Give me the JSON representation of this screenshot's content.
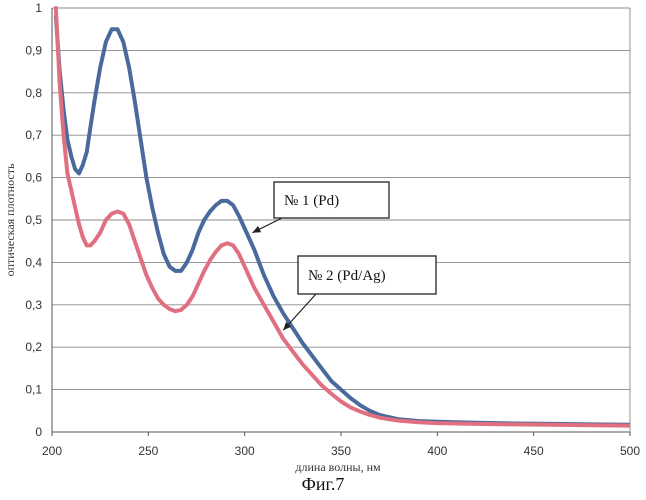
{
  "chart_data": {
    "type": "line",
    "title": "",
    "xlabel": "длина волны, нм",
    "ylabel": "оптическая плотность",
    "xlim": [
      200,
      500
    ],
    "ylim": [
      0,
      1
    ],
    "x_ticks": [
      "200",
      "250",
      "300",
      "350",
      "400",
      "450",
      "500"
    ],
    "y_ticks": [
      "0",
      "0,1",
      "0,2",
      "0,3",
      "0,4",
      "0,5",
      "0,6",
      "0,7",
      "0,8",
      "0,9",
      "1"
    ],
    "grid": true,
    "series": [
      {
        "name": "№ 1 (Pd)",
        "color": "#4a6a9c",
        "x": [
          202,
          204,
          206,
          208,
          210,
          212,
          214,
          216,
          218,
          220,
          222,
          225,
          228,
          231,
          234,
          237,
          240,
          243,
          246,
          249,
          252,
          255,
          258,
          261,
          264,
          267,
          270,
          273,
          276,
          279,
          282,
          285,
          288,
          291,
          294,
          297,
          300,
          305,
          310,
          315,
          320,
          325,
          330,
          335,
          340,
          345,
          350,
          355,
          360,
          365,
          370,
          375,
          380,
          385,
          390,
          400,
          420,
          440,
          460,
          480,
          500
        ],
        "y": [
          0.98,
          0.85,
          0.76,
          0.69,
          0.65,
          0.62,
          0.61,
          0.63,
          0.66,
          0.72,
          0.78,
          0.86,
          0.92,
          0.95,
          0.95,
          0.92,
          0.86,
          0.78,
          0.69,
          0.6,
          0.53,
          0.47,
          0.42,
          0.39,
          0.38,
          0.38,
          0.4,
          0.43,
          0.47,
          0.5,
          0.52,
          0.535,
          0.545,
          0.545,
          0.535,
          0.51,
          0.48,
          0.43,
          0.37,
          0.32,
          0.28,
          0.245,
          0.21,
          0.18,
          0.15,
          0.12,
          0.1,
          0.08,
          0.063,
          0.05,
          0.04,
          0.035,
          0.03,
          0.028,
          0.026,
          0.024,
          0.022,
          0.02,
          0.019,
          0.018,
          0.017
        ]
      },
      {
        "name": "№ 2 (Pd/Ag)",
        "color": "#e07080",
        "x": [
          202,
          204,
          206,
          208,
          210,
          212,
          214,
          216,
          218,
          220,
          222,
          225,
          228,
          231,
          234,
          237,
          240,
          243,
          246,
          249,
          252,
          255,
          258,
          261,
          264,
          267,
          270,
          273,
          276,
          279,
          282,
          285,
          288,
          291,
          294,
          297,
          300,
          305,
          310,
          315,
          320,
          325,
          330,
          335,
          340,
          345,
          350,
          355,
          360,
          365,
          370,
          375,
          380,
          385,
          390,
          400,
          420,
          440,
          460,
          480,
          500
        ],
        "y": [
          1.0,
          0.82,
          0.7,
          0.61,
          0.57,
          0.53,
          0.49,
          0.46,
          0.44,
          0.44,
          0.45,
          0.47,
          0.5,
          0.515,
          0.52,
          0.515,
          0.49,
          0.45,
          0.41,
          0.37,
          0.34,
          0.315,
          0.3,
          0.29,
          0.285,
          0.288,
          0.3,
          0.32,
          0.35,
          0.38,
          0.405,
          0.425,
          0.44,
          0.445,
          0.44,
          0.42,
          0.39,
          0.34,
          0.3,
          0.26,
          0.22,
          0.19,
          0.16,
          0.135,
          0.11,
          0.09,
          0.072,
          0.058,
          0.048,
          0.04,
          0.034,
          0.03,
          0.027,
          0.025,
          0.023,
          0.021,
          0.019,
          0.018,
          0.017,
          0.016,
          0.015
        ]
      }
    ],
    "annotations": [
      {
        "text": "№ 1 (Pd)",
        "series": 0,
        "points_to": [
          304,
          0.47
        ]
      },
      {
        "text": "№ 2 (Pd/Ag)",
        "series": 1,
        "points_to": [
          320,
          0.24
        ]
      }
    ]
  },
  "figure_caption": "Фиг.7"
}
